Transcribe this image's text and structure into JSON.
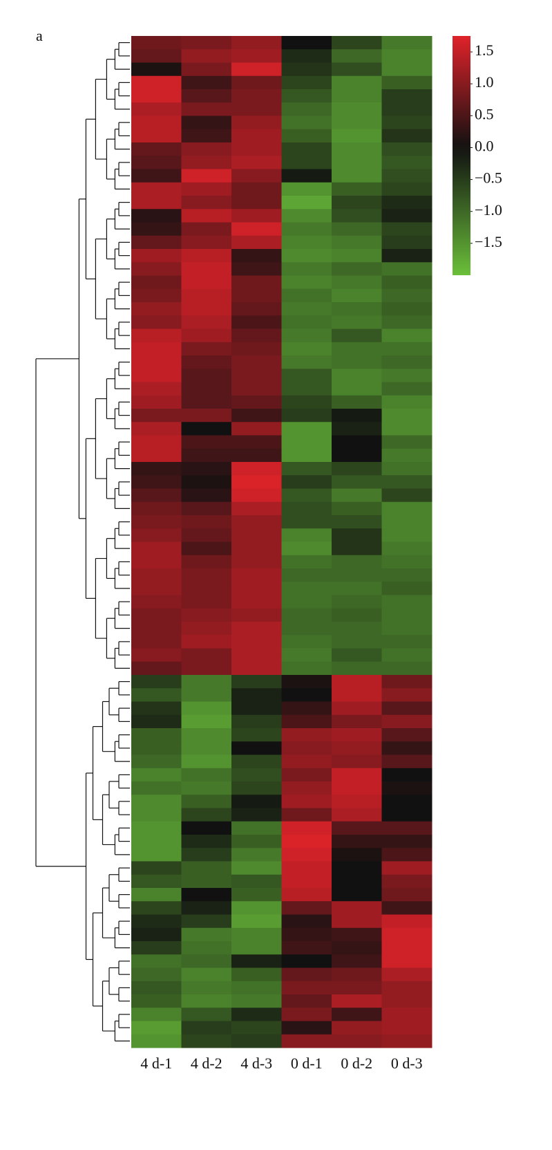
{
  "chart_data": {
    "type": "heatmap",
    "panel_label": "a",
    "categories": [
      "4 d-1",
      "4 d-2",
      "4 d-3",
      "0 d-1",
      "0 d-2",
      "0 d-3"
    ],
    "colormap": [
      "#6abf3a",
      "#111111",
      "#e0222a"
    ],
    "zlim": [
      -2.0,
      1.75
    ],
    "colorbar_ticks": [
      1.5,
      {
        "value": 1.0,
        "label": "1.0"
      },
      0.5,
      {
        "value": 0.0,
        "label": "0.0"
      },
      {
        "value": -0.5,
        "label": "−0.5"
      },
      {
        "value": -1.0,
        "label": "−1.0"
      },
      {
        "value": -1.5,
        "label": "−1.5"
      }
    ],
    "values": [
      [
        0.8,
        0.9,
        1.1,
        0.0,
        -0.6,
        -1.2
      ],
      [
        0.7,
        1.1,
        1.2,
        -0.3,
        -1.0,
        -1.3
      ],
      [
        0.1,
        0.9,
        1.6,
        -0.4,
        -0.7,
        -1.3
      ],
      [
        1.6,
        0.4,
        0.8,
        -0.6,
        -1.3,
        -0.9
      ],
      [
        1.6,
        0.6,
        0.9,
        -0.8,
        -1.3,
        -0.5
      ],
      [
        1.3,
        0.9,
        0.9,
        -1.0,
        -1.4,
        -0.5
      ],
      [
        1.4,
        0.3,
        1.1,
        -1.1,
        -1.4,
        -0.6
      ],
      [
        1.4,
        0.4,
        1.2,
        -0.9,
        -1.5,
        -0.4
      ],
      [
        0.7,
        1.0,
        1.2,
        -0.6,
        -1.4,
        -0.7
      ],
      [
        0.6,
        1.1,
        1.3,
        -0.6,
        -1.4,
        -0.8
      ],
      [
        0.4,
        1.6,
        1.0,
        -0.1,
        -1.4,
        -0.7
      ],
      [
        1.3,
        1.2,
        0.8,
        -1.5,
        -0.9,
        -0.6
      ],
      [
        1.3,
        1.0,
        0.8,
        -1.7,
        -0.6,
        -0.3
      ],
      [
        0.2,
        1.4,
        1.2,
        -1.4,
        -0.7,
        -0.2
      ],
      [
        0.3,
        0.9,
        1.6,
        -1.2,
        -1.0,
        -0.6
      ],
      [
        0.7,
        1.0,
        1.3,
        -1.3,
        -1.2,
        -0.5
      ],
      [
        1.2,
        1.4,
        0.3,
        -1.4,
        -1.3,
        -0.2
      ],
      [
        1.0,
        1.5,
        0.4,
        -1.2,
        -1.0,
        -1.1
      ],
      [
        0.8,
        1.5,
        0.8,
        -1.3,
        -1.2,
        -0.9
      ],
      [
        0.9,
        1.4,
        0.8,
        -1.1,
        -1.3,
        -1.0
      ],
      [
        1.1,
        1.4,
        0.7,
        -1.2,
        -1.1,
        -0.9
      ],
      [
        1.0,
        1.3,
        0.5,
        -1.1,
        -1.2,
        -1.0
      ],
      [
        1.4,
        1.2,
        0.7,
        -1.2,
        -0.8,
        -1.3
      ],
      [
        1.5,
        0.9,
        0.8,
        -1.3,
        -1.1,
        -1.1
      ],
      [
        1.5,
        0.7,
        0.9,
        -1.2,
        -1.1,
        -1.0
      ],
      [
        1.5,
        0.6,
        0.9,
        -0.8,
        -1.3,
        -1.2
      ],
      [
        1.3,
        0.6,
        0.9,
        -0.8,
        -1.3,
        -1.0
      ],
      [
        1.2,
        0.6,
        0.7,
        -0.6,
        -0.9,
        -1.3
      ],
      [
        0.9,
        0.9,
        0.4,
        -0.5,
        -0.1,
        -1.4
      ],
      [
        1.3,
        0.0,
        1.1,
        -1.5,
        -0.2,
        -1.4
      ],
      [
        1.4,
        0.5,
        0.5,
        -1.5,
        0.0,
        -1.0
      ],
      [
        1.4,
        0.4,
        0.4,
        -1.5,
        0.0,
        -1.2
      ],
      [
        0.3,
        0.2,
        1.6,
        -0.8,
        -0.6,
        -1.1
      ],
      [
        0.4,
        0.1,
        1.7,
        -0.5,
        -0.8,
        -0.8
      ],
      [
        0.6,
        0.2,
        1.6,
        -0.8,
        -1.2,
        -0.6
      ],
      [
        0.8,
        0.6,
        1.3,
        -0.7,
        -0.9,
        -1.3
      ],
      [
        0.9,
        0.8,
        1.1,
        -0.7,
        -0.7,
        -1.3
      ],
      [
        1.0,
        0.7,
        1.1,
        -1.3,
        -0.4,
        -1.3
      ],
      [
        1.2,
        0.5,
        1.1,
        -1.4,
        -0.4,
        -1.2
      ],
      [
        1.2,
        0.8,
        1.1,
        -1.1,
        -1.0,
        -1.1
      ],
      [
        1.1,
        0.9,
        1.2,
        -1.0,
        -1.0,
        -1.0
      ],
      [
        1.1,
        0.9,
        1.2,
        -1.1,
        -1.1,
        -0.9
      ],
      [
        1.0,
        0.9,
        1.2,
        -1.1,
        -1.0,
        -1.1
      ],
      [
        0.9,
        1.0,
        1.1,
        -1.0,
        -0.9,
        -1.1
      ],
      [
        0.9,
        1.1,
        1.3,
        -1.0,
        -1.0,
        -1.1
      ],
      [
        0.9,
        1.2,
        1.3,
        -1.1,
        -1.0,
        -1.0
      ],
      [
        1.0,
        0.9,
        1.3,
        -1.2,
        -0.8,
        -1.1
      ],
      [
        0.7,
        0.9,
        1.3,
        -1.1,
        -1.0,
        -1.0
      ],
      [
        -0.5,
        -1.2,
        -0.5,
        0.1,
        1.4,
        0.8
      ],
      [
        -0.8,
        -1.2,
        -0.2,
        0.0,
        1.4,
        1.0
      ],
      [
        -0.4,
        -1.5,
        -0.2,
        0.3,
        1.2,
        0.6
      ],
      [
        -0.3,
        -1.6,
        -0.5,
        0.5,
        0.9,
        1.0
      ],
      [
        -0.9,
        -1.4,
        -0.6,
        1.1,
        1.2,
        0.6
      ],
      [
        -0.9,
        -1.4,
        0.0,
        1.0,
        1.1,
        0.3
      ],
      [
        -1.0,
        -1.5,
        -0.6,
        1.1,
        1.0,
        0.6
      ],
      [
        -1.3,
        -1.1,
        -0.7,
        0.9,
        1.5,
        0.0
      ],
      [
        -1.1,
        -1.2,
        -0.6,
        1.1,
        1.5,
        0.1
      ],
      [
        -1.4,
        -0.9,
        -0.1,
        1.2,
        1.4,
        0.0
      ],
      [
        -1.4,
        -0.6,
        -0.2,
        0.8,
        1.3,
        0.0
      ],
      [
        -1.5,
        0.0,
        -1.1,
        1.6,
        0.6,
        0.6
      ],
      [
        -1.5,
        -0.3,
        -0.9,
        1.7,
        0.3,
        0.3
      ],
      [
        -1.5,
        -0.5,
        -1.2,
        1.6,
        0.1,
        0.5
      ],
      [
        -0.6,
        -0.9,
        -1.4,
        1.5,
        0.0,
        1.2
      ],
      [
        -0.8,
        -0.9,
        -0.8,
        1.5,
        0.0,
        0.9
      ],
      [
        -1.3,
        0.0,
        -0.9,
        1.4,
        0.0,
        0.8
      ],
      [
        -0.6,
        -0.2,
        -1.5,
        0.7,
        1.2,
        0.4
      ],
      [
        -0.3,
        -0.5,
        -1.6,
        0.2,
        1.2,
        1.5
      ],
      [
        -0.2,
        -1.2,
        -1.3,
        0.3,
        0.4,
        1.6
      ],
      [
        -0.5,
        -1.1,
        -1.3,
        0.4,
        0.3,
        1.6
      ],
      [
        -1.1,
        -1.0,
        -0.2,
        0.0,
        0.4,
        1.6
      ],
      [
        -1.0,
        -1.3,
        -0.9,
        0.7,
        0.8,
        1.3
      ],
      [
        -0.8,
        -1.2,
        -1.1,
        0.9,
        0.9,
        1.1
      ],
      [
        -0.9,
        -1.3,
        -1.2,
        0.7,
        1.3,
        1.1
      ],
      [
        -1.3,
        -0.8,
        -0.3,
        0.9,
        0.4,
        1.2
      ],
      [
        -1.6,
        -0.5,
        -0.6,
        0.2,
        1.1,
        1.2
      ],
      [
        -1.5,
        -0.6,
        -0.5,
        1.0,
        1.0,
        1.1
      ]
    ]
  }
}
